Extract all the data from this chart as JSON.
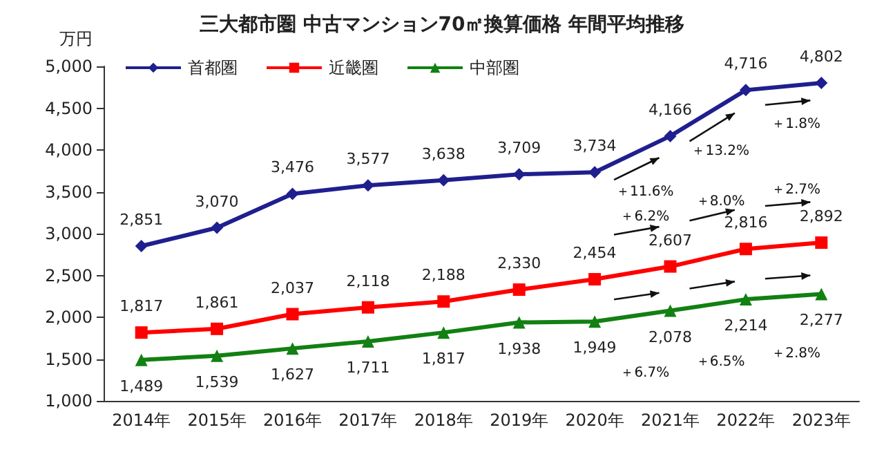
{
  "chart_data": {
    "type": "line",
    "title": "三大都市圏 中古マンション70㎡換算価格 年間平均推移",
    "ylabel": "万円",
    "categories": [
      "2014年",
      "2015年",
      "2016年",
      "2017年",
      "2018年",
      "2019年",
      "2020年",
      "2021年",
      "2022年",
      "2023年"
    ],
    "series": [
      {
        "name": "首都圏",
        "color": "#1f1f8f",
        "marker": "diamond",
        "values": [
          2851,
          3070,
          3476,
          3577,
          3638,
          3709,
          3734,
          4166,
          4716,
          4802
        ],
        "value_labels": [
          "2,851",
          "3,070",
          "3,476",
          "3,577",
          "3,638",
          "3,709",
          "3,734",
          "4,166",
          "4,716",
          "4,802"
        ]
      },
      {
        "name": "近畿圏",
        "color": "#ff0000",
        "marker": "square",
        "values": [
          1817,
          1861,
          2037,
          2118,
          2188,
          2330,
          2454,
          2607,
          2816,
          2892
        ],
        "value_labels": [
          "1,817",
          "1,861",
          "2,037",
          "2,118",
          "2,188",
          "2,330",
          "2,454",
          "2,607",
          "2,816",
          "2,892"
        ]
      },
      {
        "name": "中部圏",
        "color": "#128012",
        "marker": "triangle",
        "values": [
          1489,
          1539,
          1627,
          1711,
          1817,
          1938,
          1949,
          2078,
          2214,
          2277
        ],
        "value_labels": [
          "1,489",
          "1,539",
          "1,627",
          "1,711",
          "1,817",
          "1,938",
          "1,949",
          "2,078",
          "2,214",
          "2,277"
        ]
      }
    ],
    "ylim": [
      1000,
      5000
    ],
    "yticks": [
      {
        "value": 1000,
        "label": "1,000"
      },
      {
        "value": 1500,
        "label": "1,500"
      },
      {
        "value": 2000,
        "label": "2,000"
      },
      {
        "value": 2500,
        "label": "2,500"
      },
      {
        "value": 3000,
        "label": "3,000"
      },
      {
        "value": 3500,
        "label": "3,500"
      },
      {
        "value": 4000,
        "label": "4,000"
      },
      {
        "value": 4500,
        "label": "4,500"
      },
      {
        "value": 5000,
        "label": "5,000"
      }
    ],
    "grid": false,
    "legend": "top left",
    "annotations": [
      "＋11.6%",
      "＋13.2%",
      "＋1.8%",
      "＋6.2%",
      "＋8.0%",
      "＋2.7%",
      "＋6.7%",
      "＋6.5%",
      "＋2.8%"
    ]
  }
}
